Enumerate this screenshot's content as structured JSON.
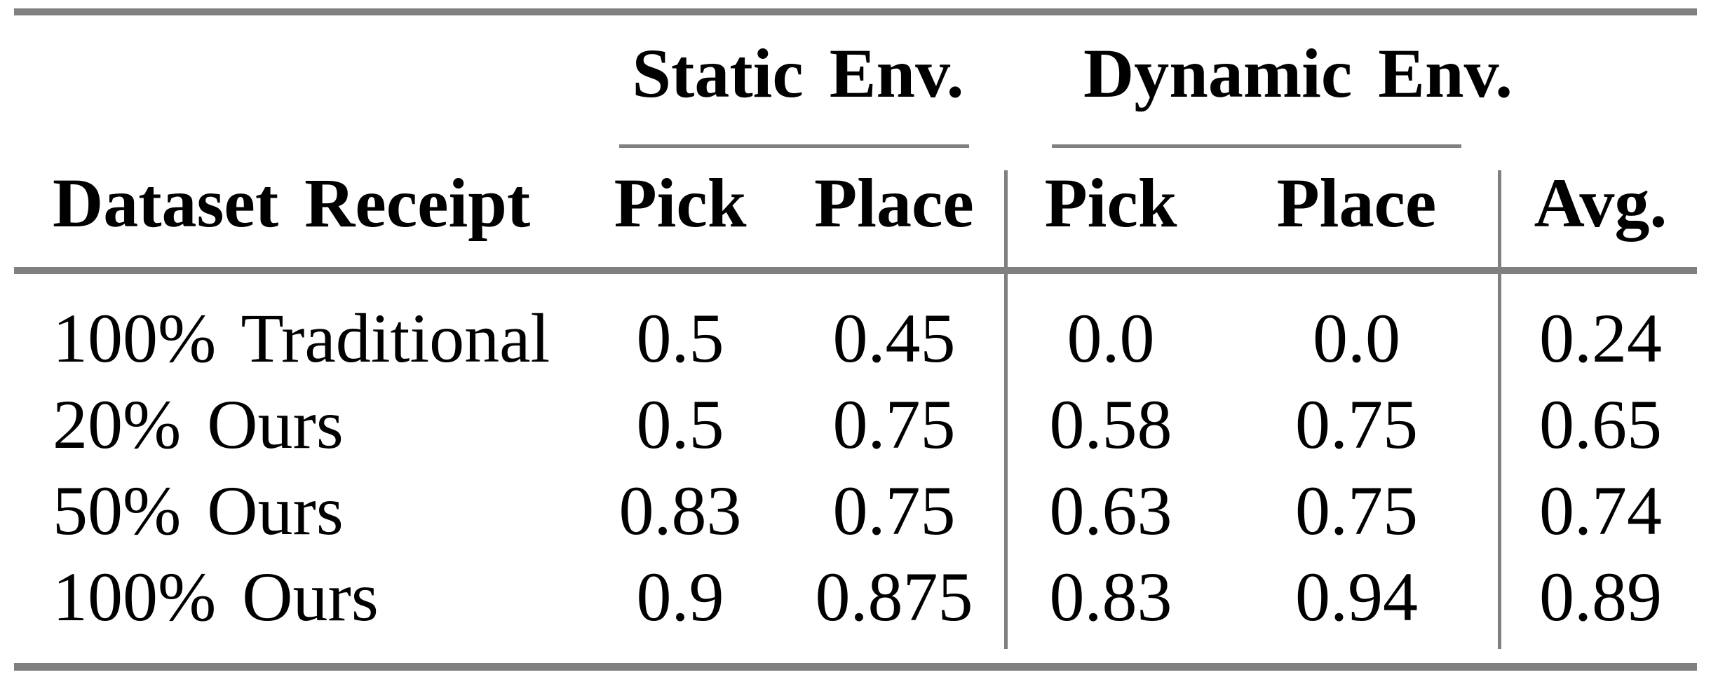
{
  "table": {
    "group_headers": {
      "static": "Static Env.",
      "dynamic": "Dynamic Env."
    },
    "headers": {
      "dataset": "Dataset Receipt",
      "static_pick": "Pick",
      "static_place": "Place",
      "dynamic_pick": "Pick",
      "dynamic_place": "Place",
      "avg": "Avg."
    },
    "rows": [
      {
        "label": "100% Traditional",
        "static_pick": "0.5",
        "static_place": "0.45",
        "dynamic_pick": "0.0",
        "dynamic_place": "0.0",
        "avg": "0.24"
      },
      {
        "label": "20% Ours",
        "static_pick": "0.5",
        "static_place": "0.75",
        "dynamic_pick": "0.58",
        "dynamic_place": "0.75",
        "avg": "0.65"
      },
      {
        "label": "50% Ours",
        "static_pick": "0.83",
        "static_place": "0.75",
        "dynamic_pick": "0.63",
        "dynamic_place": "0.75",
        "avg": "0.74"
      },
      {
        "label": "100% Ours",
        "static_pick": "0.9",
        "static_place": "0.875",
        "dynamic_pick": "0.83",
        "dynamic_place": "0.94",
        "avg": "0.89"
      }
    ]
  },
  "colors": {
    "rule": "#808080",
    "text": "#000000",
    "background": "#ffffff"
  }
}
